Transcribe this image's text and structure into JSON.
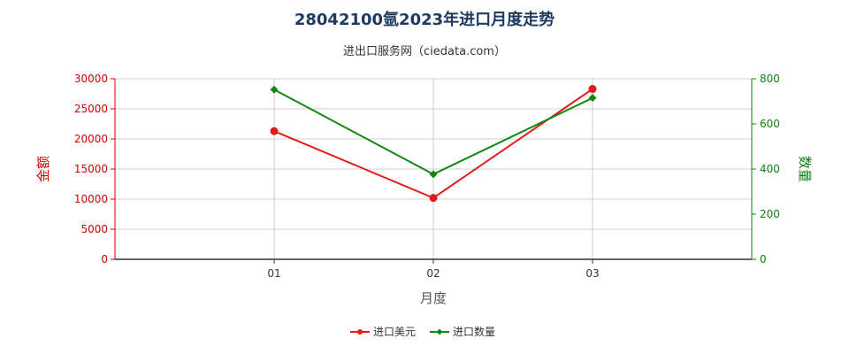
{
  "chart_data": {
    "type": "line",
    "title": "28042100氩2023年进口月度走势",
    "subtitle": "进出口服务网（ciedata.com）",
    "xlabel": "月度",
    "ylabel_left": "金额",
    "ylabel_right": "数量",
    "categories": [
      "01",
      "02",
      "03"
    ],
    "y_left": {
      "lim": [
        0,
        30000
      ],
      "ticks": [
        0,
        5000,
        10000,
        15000,
        20000,
        25000,
        30000
      ]
    },
    "y_right": {
      "lim": [
        0,
        800
      ],
      "ticks": [
        0,
        200,
        400,
        600,
        800
      ]
    },
    "series": [
      {
        "name": "进口美元",
        "axis": "left",
        "color": "#e31a1c",
        "marker": "circle",
        "values": [
          21300,
          10200,
          28300
        ]
      },
      {
        "name": "进口数量",
        "axis": "right",
        "color": "#128812",
        "marker": "diamond",
        "values": [
          752,
          377,
          715
        ]
      }
    ],
    "grid": true,
    "legend_position": "bottom"
  }
}
